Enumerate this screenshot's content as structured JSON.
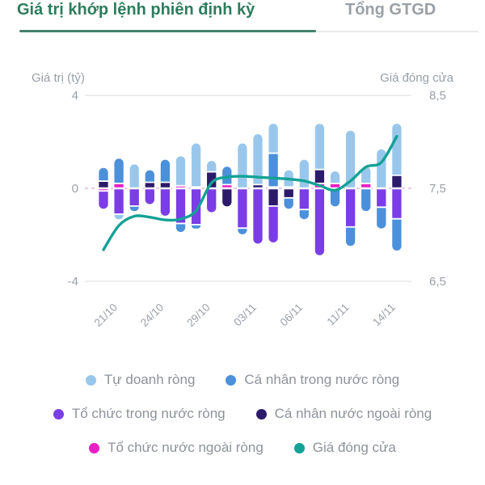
{
  "tabs": {
    "active_label": "Giá trị khớp lệnh phiên định kỳ",
    "inactive_label": "Tổng GTGD"
  },
  "colors": {
    "active_tab_text": "#2e7d5e",
    "active_tab_underline": "#44806b",
    "inactive_tab_text": "#9aa0a6",
    "grid_line": "#e2e4e7",
    "zero_line": "#e7b3d8",
    "axis_text": "#9aa0a8",
    "legend_text": "#8d929b",
    "background": "#ffffff"
  },
  "chart_data": {
    "type": "bar",
    "subtype": "stacked-bar-with-line-overlay",
    "left_axis": {
      "title": "Giá trị (tỷ)",
      "tick_labels": [
        "4",
        "0",
        "-4"
      ],
      "tick_values": [
        4,
        0,
        -4
      ],
      "range": [
        -4,
        4
      ]
    },
    "right_axis": {
      "title": "Giá đóng cửa",
      "tick_labels": [
        "8,5",
        "7,5",
        "6,5"
      ],
      "tick_values": [
        8.5,
        7.5,
        6.5
      ],
      "range": [
        6.5,
        8.5
      ]
    },
    "x_axis": {
      "bar_count": 20,
      "visible_labels": [
        "21/10",
        "24/10",
        "29/10",
        "03/11",
        "06/11",
        "11/11",
        "14/11"
      ],
      "label_bar_indices": [
        0,
        3,
        6,
        9,
        12,
        15,
        18
      ],
      "label_rotation_deg": -45
    },
    "stack_order_from_zero": [
      "Tổ chức nước ngoài ròng",
      "Cá nhân nước ngoài ròng",
      "Tổ chức trong nước ròng",
      "Cá nhân trong nước ròng",
      "Tự doanh ròng"
    ],
    "series": [
      {
        "name": "Tự doanh ròng",
        "type": "bar",
        "color": "#99c7ec",
        "values": [
          0,
          -0.25,
          1.05,
          0,
          0,
          1.3,
          1.9,
          0.5,
          0,
          1.95,
          2.2,
          1.3,
          0.75,
          1.25,
          2.0,
          0.55,
          2.5,
          0.75,
          1.7,
          2.25
        ]
      },
      {
        "name": "Cá nhân trong nước ròng",
        "type": "bar",
        "color": "#4b90da",
        "values": [
          0.6,
          1.1,
          -0.25,
          0.55,
          1.0,
          -0.4,
          -0.2,
          0,
          0.8,
          -0.3,
          0,
          1.45,
          -0.5,
          -0.45,
          0,
          -0.8,
          -0.85,
          -1.0,
          -0.95,
          -1.4
        ]
      },
      {
        "name": "Tổ chức trong nước ròng",
        "type": "bar",
        "color": "#7b3de6",
        "values": [
          -0.8,
          -1.1,
          -0.75,
          -0.7,
          -1.2,
          -1.5,
          -1.55,
          -1.05,
          0,
          -1.7,
          -2.4,
          -1.6,
          0,
          -0.9,
          -2.9,
          0,
          -1.65,
          0,
          -0.8,
          -1.3
        ]
      },
      {
        "name": "Cá nhân nước ngoài ròng",
        "type": "bar",
        "color": "#2c1b6a",
        "values": [
          0.3,
          0,
          0,
          0.25,
          0.25,
          0,
          0,
          0.7,
          -0.8,
          0,
          0.15,
          -0.75,
          -0.4,
          0,
          0.6,
          0,
          0,
          0,
          0,
          0.55
        ]
      },
      {
        "name": "Tổ chức nước ngoài ròng",
        "type": "bar",
        "color": "#ea1fc5",
        "values": [
          -0.1,
          0.2,
          0,
          0,
          0,
          0.1,
          0.05,
          0,
          0.15,
          0,
          0,
          0.05,
          0.05,
          0,
          0.2,
          0.2,
          0,
          0.2,
          0,
          0
        ]
      },
      {
        "name": "Giá đóng cửa",
        "type": "line",
        "color": "#13a295",
        "values": [
          6.84,
          7.1,
          7.2,
          7.19,
          7.16,
          7.17,
          7.26,
          7.56,
          7.62,
          7.63,
          7.62,
          7.61,
          7.6,
          7.58,
          7.53,
          7.48,
          7.58,
          7.73,
          7.78,
          8.06
        ]
      }
    ]
  },
  "legend": {
    "items": [
      {
        "label": "Tự doanh ròng",
        "color": "#99c7ec"
      },
      {
        "label": "Cá nhân trong nước ròng",
        "color": "#4b90da"
      },
      {
        "label": "Tổ chức trong nước ròng",
        "color": "#7b3de6"
      },
      {
        "label": "Cá nhân nước ngoài ròng",
        "color": "#2c1b6a"
      },
      {
        "label": "Tổ chức nước ngoài ròng",
        "color": "#ea1fc5"
      },
      {
        "label": "Giá đóng cửa",
        "color": "#13a295"
      }
    ]
  }
}
